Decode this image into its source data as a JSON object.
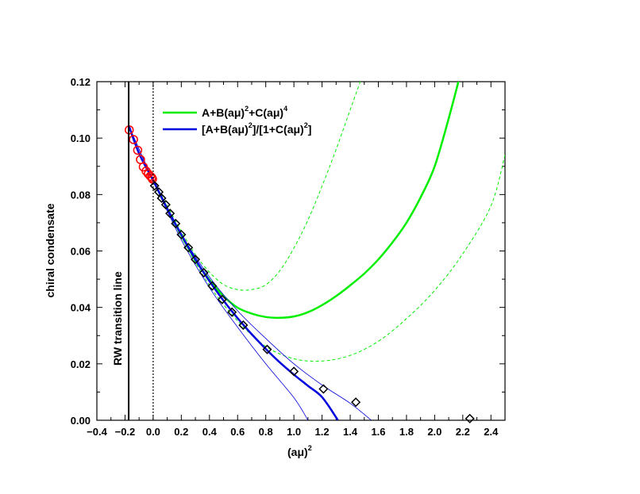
{
  "chart_data": {
    "type": "scatter",
    "title": "",
    "xlabel": "(aμ)",
    "xlabel_sup": "2",
    "ylabel": "chiral condensate",
    "xlim": [
      -0.4,
      2.5
    ],
    "ylim": [
      0.0,
      0.12
    ],
    "xticks": [
      "−0.4",
      "−0.2",
      "0.0",
      "0.2",
      "0.4",
      "0.6",
      "0.8",
      "1.0",
      "1.2",
      "1.4",
      "1.6",
      "1.8",
      "2.0",
      "2.2",
      "2.4"
    ],
    "yticks": [
      "0.00",
      "0.02",
      "0.04",
      "0.06",
      "0.08",
      "0.10",
      "0.12"
    ],
    "grid": false,
    "legend_position": "top-left",
    "annotations": {
      "rw_line_label": "RW transition line",
      "rw_line_x": -0.174
    },
    "legend": {
      "green_label": "A+B(aμ)",
      "green_sup1": "2",
      "green_mid": "+C(aμ)",
      "green_sup2": "4",
      "blue_label": "[A+B(aμ)",
      "blue_sup1": "2",
      "blue_mid": "]/[1+C(aμ)",
      "blue_sup2": "2",
      "blue_end": "]"
    },
    "colors": {
      "green": "#00ee00",
      "blue": "#0000dd",
      "red": "#ff0000",
      "black": "#000000"
    },
    "series": [
      {
        "marker": "circle",
        "color": "#ff0000",
        "points": [
          [
            -0.17,
            0.1029
          ],
          [
            -0.14,
            0.0995
          ],
          [
            -0.11,
            0.0957
          ],
          [
            -0.09,
            0.0924
          ],
          [
            -0.07,
            0.0898
          ],
          [
            -0.05,
            0.0883
          ],
          [
            -0.035,
            0.0873
          ],
          [
            -0.02,
            0.0865
          ],
          [
            -0.01,
            0.086
          ],
          [
            -0.005,
            0.0855
          ]
        ]
      },
      {
        "marker": "diamond",
        "color": "#000000",
        "points": [
          [
            0.01,
            0.0831
          ],
          [
            0.04,
            0.0809
          ],
          [
            0.06,
            0.0787
          ],
          [
            0.09,
            0.0764
          ],
          [
            0.12,
            0.0733
          ],
          [
            0.16,
            0.0697
          ],
          [
            0.2,
            0.0658
          ],
          [
            0.25,
            0.0612
          ],
          [
            0.3,
            0.057
          ],
          [
            0.36,
            0.0523
          ],
          [
            0.42,
            0.0476
          ],
          [
            0.49,
            0.0428
          ],
          [
            0.56,
            0.0383
          ],
          [
            0.64,
            0.0337
          ],
          [
            0.81,
            0.0251
          ],
          [
            1.0,
            0.0173
          ],
          [
            1.21,
            0.0111
          ],
          [
            1.44,
            0.0064
          ],
          [
            2.25,
            0.0006
          ]
        ]
      },
      {
        "line": "solid",
        "color": "#00ee00",
        "points": [
          [
            0.0,
            0.085
          ],
          [
            0.1,
            0.075
          ],
          [
            0.2,
            0.0655
          ],
          [
            0.3,
            0.0568
          ],
          [
            0.4,
            0.0498
          ],
          [
            0.5,
            0.044
          ],
          [
            0.6,
            0.0399
          ],
          [
            0.7,
            0.0378
          ],
          [
            0.8,
            0.0366
          ],
          [
            0.9,
            0.0363
          ],
          [
            1.0,
            0.0368
          ],
          [
            1.1,
            0.0383
          ],
          [
            1.2,
            0.0408
          ],
          [
            1.3,
            0.044
          ],
          [
            1.4,
            0.0478
          ],
          [
            1.5,
            0.052
          ],
          [
            1.6,
            0.057
          ],
          [
            1.7,
            0.063
          ],
          [
            1.8,
            0.07
          ],
          [
            1.9,
            0.079
          ],
          [
            2.0,
            0.09
          ],
          [
            2.1,
            0.107
          ],
          [
            2.2,
            0.126
          ]
        ]
      },
      {
        "line": "dashed",
        "color": "#00ee00",
        "points": [
          [
            0.0,
            0.085
          ],
          [
            0.1,
            0.076
          ],
          [
            0.2,
            0.067
          ],
          [
            0.3,
            0.0587
          ],
          [
            0.4,
            0.0525
          ],
          [
            0.5,
            0.0481
          ],
          [
            0.6,
            0.0463
          ],
          [
            0.7,
            0.0463
          ],
          [
            0.8,
            0.048
          ],
          [
            0.9,
            0.053
          ],
          [
            1.0,
            0.061
          ],
          [
            1.1,
            0.071
          ],
          [
            1.2,
            0.083
          ],
          [
            1.3,
            0.096
          ],
          [
            1.4,
            0.11
          ],
          [
            1.5,
            0.124
          ]
        ]
      },
      {
        "line": "dashed",
        "color": "#00ee00",
        "points": [
          [
            0.0,
            0.085
          ],
          [
            0.2,
            0.065
          ],
          [
            0.4,
            0.0478
          ],
          [
            0.6,
            0.0352
          ],
          [
            0.8,
            0.0262
          ],
          [
            1.0,
            0.0218
          ],
          [
            1.2,
            0.021
          ],
          [
            1.4,
            0.023
          ],
          [
            1.6,
            0.028
          ],
          [
            1.8,
            0.036
          ],
          [
            2.0,
            0.046
          ],
          [
            2.2,
            0.059
          ],
          [
            2.4,
            0.076
          ],
          [
            2.5,
            0.094
          ]
        ]
      },
      {
        "line": "solid",
        "color": "#0000dd",
        "points": [
          [
            -0.17,
            0.104
          ],
          [
            -0.1,
            0.0945
          ],
          [
            0.0,
            0.085
          ],
          [
            0.1,
            0.075
          ],
          [
            0.2,
            0.0658
          ],
          [
            0.3,
            0.057
          ],
          [
            0.4,
            0.0493
          ],
          [
            0.5,
            0.0424
          ],
          [
            0.6,
            0.0362
          ],
          [
            0.7,
            0.0305
          ],
          [
            0.8,
            0.0253
          ],
          [
            0.9,
            0.0205
          ],
          [
            1.0,
            0.0162
          ],
          [
            1.1,
            0.0122
          ],
          [
            1.2,
            0.0082
          ],
          [
            1.3,
            0.001
          ],
          [
            1.31,
            0.0
          ]
        ]
      },
      {
        "line": "thin",
        "color": "#0000dd",
        "points": [
          [
            -0.17,
            0.104
          ],
          [
            0.0,
            0.085
          ],
          [
            0.2,
            0.066
          ],
          [
            0.4,
            0.0508
          ],
          [
            0.6,
            0.0388
          ],
          [
            0.8,
            0.029
          ],
          [
            1.0,
            0.02
          ],
          [
            1.2,
            0.0125
          ],
          [
            1.4,
            0.006
          ],
          [
            1.55,
            0.0
          ]
        ]
      },
      {
        "line": "thin",
        "color": "#0000dd",
        "points": [
          [
            -0.17,
            0.104
          ],
          [
            0.0,
            0.085
          ],
          [
            0.2,
            0.064
          ],
          [
            0.4,
            0.047
          ],
          [
            0.6,
            0.033
          ],
          [
            0.8,
            0.02
          ],
          [
            1.0,
            0.008
          ],
          [
            1.1,
            0.0
          ]
        ]
      }
    ]
  }
}
